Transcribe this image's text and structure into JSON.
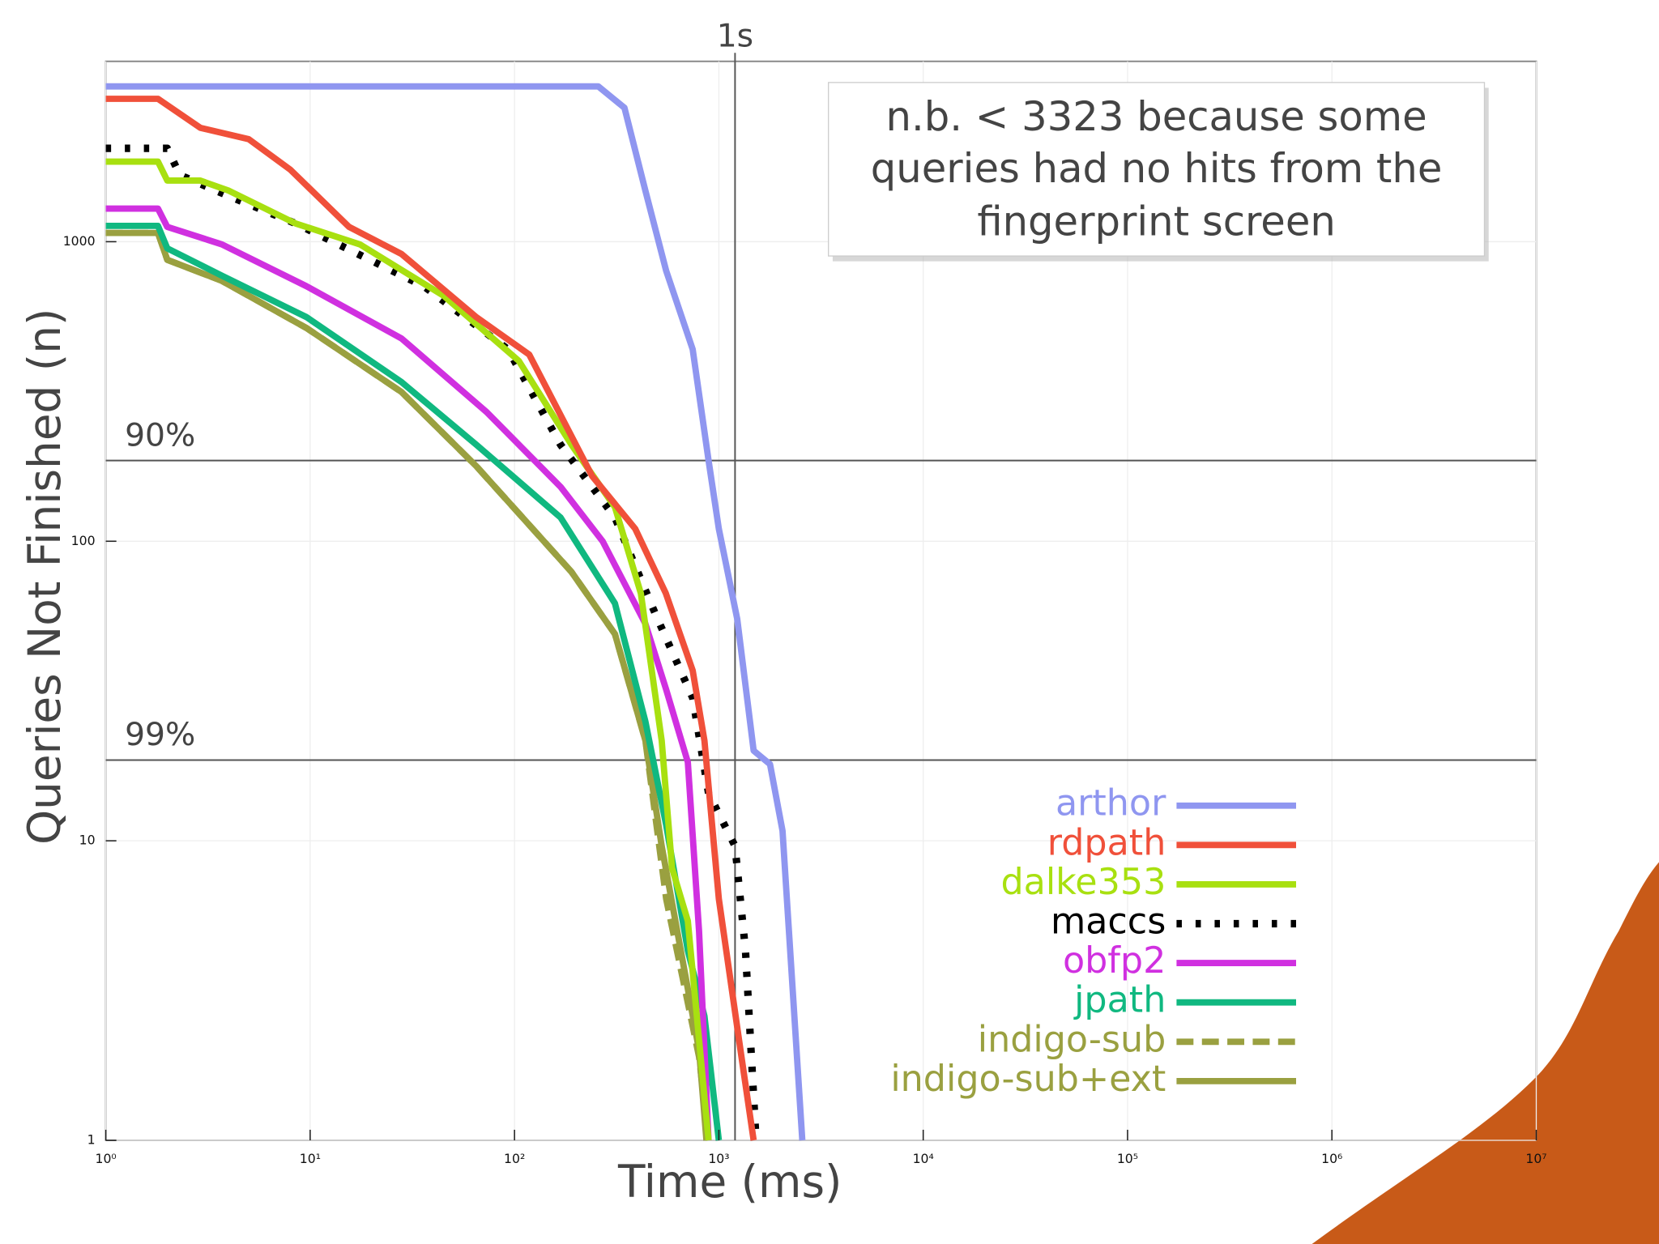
{
  "chart_data": {
    "type": "line",
    "x_label": "Time (ms)",
    "y_label": "Queries Not Finished (n)",
    "xscale": "log",
    "yscale": "log",
    "xlim": [
      1,
      10000000
    ],
    "ylim": [
      1,
      4000
    ],
    "xticks": [
      {
        "value": 1,
        "label": "10⁰"
      },
      {
        "value": 10,
        "label": "10¹"
      },
      {
        "value": 100,
        "label": "10²"
      },
      {
        "value": 1000,
        "label": "10³"
      },
      {
        "value": 10000,
        "label": "10⁴"
      },
      {
        "value": 100000,
        "label": "10⁵"
      },
      {
        "value": 1000000,
        "label": "10⁶"
      },
      {
        "value": 10000000,
        "label": "10⁷"
      }
    ],
    "yticks": [
      1,
      10,
      100,
      1000
    ],
    "grid": true,
    "legend": "lower right",
    "reference_lines": [
      {
        "axis": "x",
        "value": 1200,
        "label": "1s"
      },
      {
        "axis": "y",
        "value": 186,
        "label": "90%"
      },
      {
        "axis": "y",
        "value": 18.6,
        "label": "99%"
      }
    ],
    "annotation": [
      "n.b. < 3323 because some",
      "queries had no hits from the",
      "fingerprint screen"
    ],
    "series": [
      {
        "name": "arthor",
        "color": "#8f96f0",
        "dash": "solid",
        "x": [
          1,
          257,
          345,
          437,
          552,
          745,
          890,
          1000,
          1230,
          1480,
          1780,
          2050,
          2560
        ],
        "values": [
          3300,
          3300,
          2800,
          1480,
          800,
          437,
          186,
          110,
          55,
          20,
          18,
          10.8,
          1
        ]
      },
      {
        "name": "rdpath",
        "color": "#f0503a",
        "dash": "solid",
        "x": [
          1,
          1.8,
          2.9,
          5,
          8,
          15.5,
          28,
          65,
          118,
          240,
          390,
          550,
          745,
          850,
          1000,
          1290,
          1480
        ],
        "values": [
          3000,
          3000,
          2400,
          2200,
          1740,
          1120,
          910,
          560,
          420,
          165,
          110,
          67,
          37,
          21.6,
          6.4,
          1.9,
          1
        ]
      },
      {
        "name": "dalke353",
        "color": "#a8e010",
        "dash": "solid",
        "x": [
          1,
          1.8,
          2.0,
          2.9,
          4,
          8.5,
          17.5,
          45,
          105,
          190,
          310,
          415,
          525,
          590,
          705,
          890
        ],
        "values": [
          1850,
          1850,
          1600,
          1600,
          1480,
          1150,
          980,
          660,
          400,
          210,
          130,
          67,
          21.6,
          8.1,
          5.4,
          1
        ]
      },
      {
        "name": "maccs",
        "color": "#000000",
        "dash": "dotted",
        "x": [
          1,
          2.0,
          2.3,
          4,
          8.5,
          36,
          93,
          168,
          310,
          490,
          745,
          890,
          1200,
          1350,
          1520
        ],
        "values": [
          2050,
          2050,
          1670,
          1420,
          1150,
          710,
          437,
          210,
          120,
          57,
          30,
          14.4,
          9.6,
          4.3,
          1
        ]
      },
      {
        "name": "obfp2",
        "color": "#d030e0",
        "dash": "solid",
        "x": [
          1,
          1.8,
          2.0,
          3.7,
          9.6,
          28,
          73,
          168,
          270,
          437,
          552,
          705,
          800,
          890
        ],
        "values": [
          1290,
          1290,
          1120,
          980,
          710,
          475,
          270,
          152,
          100,
          53,
          32,
          18.3,
          5.0,
          1
        ]
      },
      {
        "name": "jpath",
        "color": "#10b880",
        "dash": "solid",
        "x": [
          1,
          1.8,
          2.0,
          3.7,
          9.6,
          28,
          65,
          168,
          310,
          437,
          552,
          705,
          850,
          1000
        ],
        "values": [
          1130,
          1130,
          950,
          770,
          560,
          340,
          210,
          120,
          62,
          25,
          11.3,
          4.3,
          2.6,
          1
        ]
      },
      {
        "name": "indigo-sub",
        "color": "#9aa040",
        "dash": "dashed",
        "x": [
          1,
          1.8,
          2.0,
          3.7,
          9.6,
          28,
          65,
          190,
          310,
          437,
          552,
          800,
          890
        ],
        "values": [
          1070,
          1070,
          870,
          740,
          515,
          315,
          178,
          79,
          49,
          21.6,
          6.4,
          1.9,
          1
        ]
      },
      {
        "name": "indigo-sub+ext",
        "color": "#9aa040",
        "dash": "solid",
        "x": [
          1,
          1.8,
          2.0,
          3.7,
          9.6,
          28,
          65,
          190,
          310,
          437,
          525,
          800,
          870
        ],
        "values": [
          1070,
          1070,
          870,
          740,
          515,
          315,
          178,
          79,
          49,
          21.6,
          9.6,
          2.0,
          1
        ]
      }
    ]
  }
}
